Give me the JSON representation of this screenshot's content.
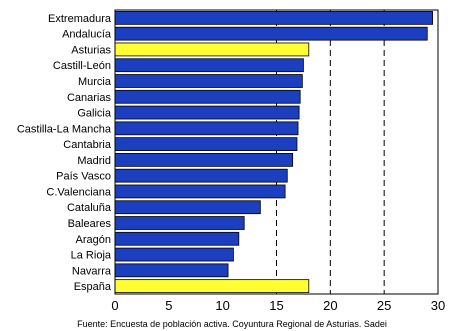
{
  "chart_data": {
    "type": "bar",
    "orientation": "horizontal",
    "categories": [
      "Extremadura",
      "Andalucía",
      "Asturias",
      "Castill-León",
      "Murcia",
      "Canarias",
      "Galicia",
      "Castilla-La Mancha",
      "Cantabria",
      "Madrid",
      "País Vasco",
      "C.Valenciana",
      "Cataluña",
      "Baleares",
      "Aragón",
      "La Rioja",
      "Navarra",
      "España"
    ],
    "values": [
      29.5,
      29.0,
      18.0,
      17.5,
      17.4,
      17.2,
      17.1,
      17.0,
      16.9,
      16.5,
      16.0,
      15.8,
      13.5,
      12.0,
      11.5,
      11.0,
      10.5,
      18.0
    ],
    "highlighted": [
      "Asturias",
      "España"
    ],
    "xlim": [
      0,
      30
    ],
    "xticks": [
      0,
      5,
      10,
      15,
      20,
      25,
      30
    ],
    "gridlines_x": [
      15,
      20,
      25
    ],
    "colors": {
      "bar": "#1c3fbf",
      "highlight": "#ffff33",
      "grid": "#000000"
    },
    "source": "Fuente: Encuesta de población activa. Coyuntura Regional de Asturias. Sadei"
  }
}
